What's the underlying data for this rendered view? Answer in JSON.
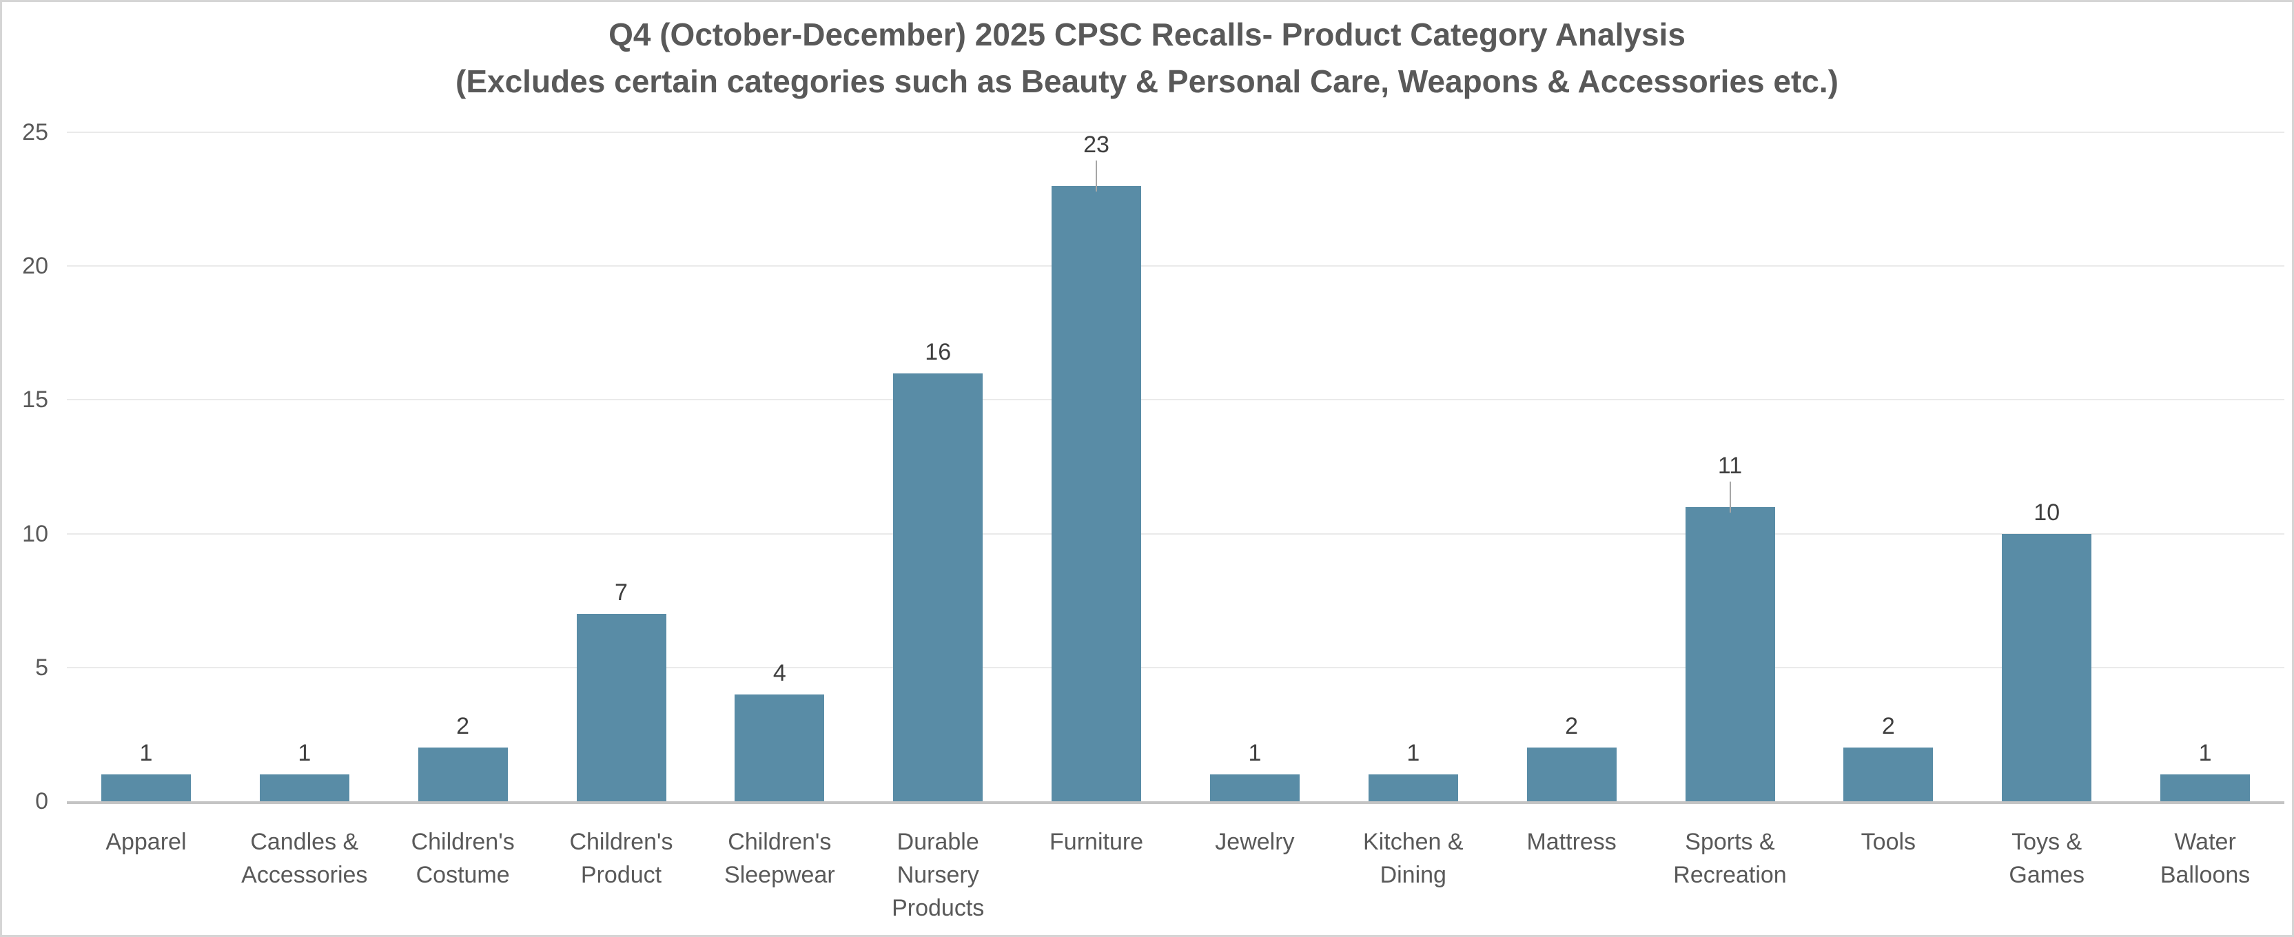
{
  "chart_data": {
    "type": "bar",
    "title": "Q4 (October-December) 2025 CPSC Recalls- Product Category Analysis",
    "subtitle": "(Excludes certain categories such as Beauty & Personal Care, Weapons & Accessories etc.)",
    "categories": [
      "Apparel",
      "Candles &\nAccessories",
      "Children's\nCostume",
      "Children's\nProduct",
      "Children's\nSleepwear",
      "Durable\nNursery\nProducts",
      "Furniture",
      "Jewelry",
      "Kitchen &\nDining",
      "Mattress",
      "Sports &\nRecreation",
      "Tools",
      "Toys &\nGames",
      "Water\nBalloons"
    ],
    "values": [
      1,
      1,
      2,
      7,
      4,
      16,
      23,
      1,
      1,
      2,
      11,
      2,
      10,
      1
    ],
    "xlabel": "",
    "ylabel": "",
    "y_ticks": [
      0,
      5,
      10,
      15,
      20,
      25
    ],
    "ylim": [
      0,
      25
    ],
    "grid": true,
    "legend_position": "none",
    "raised_data_label_indices": [
      6,
      10
    ],
    "colors": {
      "bar": "#598CA6",
      "title_text": "#595959",
      "axis_text": "#595959",
      "data_label_text": "#3F3F3F",
      "gridline": "#EAEAEA",
      "axis_line": "#C4C4C4",
      "leader_line": "#A6A6A6",
      "chart_border": "#D5D5D5",
      "background": "#FFFFFF"
    }
  }
}
